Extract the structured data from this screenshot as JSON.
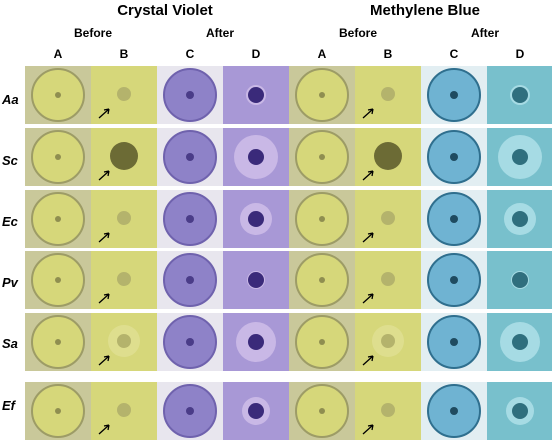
{
  "headers": {
    "left_title": "Crystal Violet",
    "right_title": "Methylene Blue",
    "before": "Before",
    "after": "After"
  },
  "columns": [
    "A",
    "B",
    "C",
    "D"
  ],
  "rows": [
    "Aa",
    "Sc",
    "Ec",
    "Pv",
    "Sa",
    "Ef"
  ],
  "colors": {
    "agar_yellow": "#d6d77a",
    "crystal_violet": "#8e82c8",
    "methylene_blue": "#6fb3d2"
  }
}
